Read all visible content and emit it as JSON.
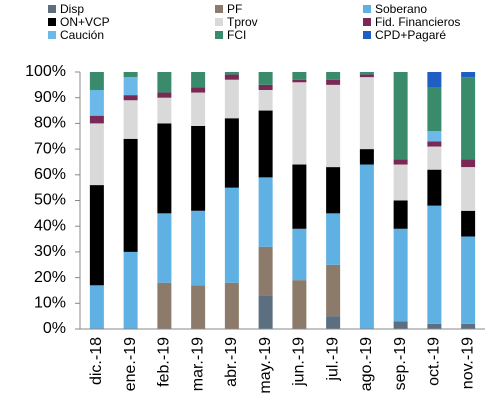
{
  "chart_data": {
    "type": "stacked-bar",
    "categories": [
      "dic.-18",
      "ene.-19",
      "feb.-19",
      "mar.-19",
      "abr.-19",
      "may.-19",
      "jun.-19",
      "jul.-19",
      "ago.-19",
      "sep.-19",
      "oct.-19",
      "nov.-19"
    ],
    "series": [
      {
        "name": "Disp",
        "color": "#5b6f80",
        "values": [
          0,
          0,
          0,
          0,
          0,
          13,
          0,
          5,
          0,
          3,
          2,
          2
        ]
      },
      {
        "name": "PF",
        "color": "#8c7b6b",
        "values": [
          0,
          0,
          18,
          17,
          18,
          19,
          19,
          20,
          0,
          0,
          0,
          0
        ]
      },
      {
        "name": "Soberano",
        "color": "#5fb0e3",
        "values": [
          17,
          30,
          27,
          29,
          37,
          27,
          20,
          20,
          64,
          36,
          46,
          34
        ]
      },
      {
        "name": "ON+VCP",
        "color": "#000000",
        "values": [
          39,
          44,
          35,
          33,
          27,
          26,
          25,
          18,
          6,
          11,
          14,
          10
        ]
      },
      {
        "name": "Tprov",
        "color": "#d9d9d9",
        "values": [
          24,
          15,
          10,
          13,
          15,
          8,
          32,
          32,
          28,
          14,
          9,
          17
        ]
      },
      {
        "name": "Fid. Financieros",
        "color": "#7a2855",
        "values": [
          3,
          2,
          2,
          2,
          2,
          2,
          1,
          2,
          1,
          2,
          2,
          3
        ]
      },
      {
        "name": "Caución",
        "color": "#6cb8e8",
        "values": [
          10,
          7,
          0,
          0,
          0,
          0,
          0,
          0,
          0,
          0,
          4,
          0
        ]
      },
      {
        "name": "FCI",
        "color": "#3a8a6c",
        "values": [
          7,
          2,
          8,
          6,
          1,
          5,
          3,
          3,
          1,
          34,
          17,
          32
        ]
      },
      {
        "name": "CPD+Pagaré",
        "color": "#1f5fc4",
        "values": [
          0,
          0,
          0,
          0,
          0,
          0,
          0,
          0,
          0,
          0,
          6,
          2
        ]
      }
    ],
    "ylim": [
      0,
      100
    ],
    "yticks": [
      {
        "value": 0,
        "label": "0%"
      },
      {
        "value": 10,
        "label": "10%"
      },
      {
        "value": 20,
        "label": "20%"
      },
      {
        "value": 30,
        "label": "30%"
      },
      {
        "value": 40,
        "label": "40%"
      },
      {
        "value": 50,
        "label": "50%"
      },
      {
        "value": 60,
        "label": "60%"
      },
      {
        "value": 70,
        "label": "70%"
      },
      {
        "value": 80,
        "label": "80%"
      },
      {
        "value": 90,
        "label": "90%"
      },
      {
        "value": 100,
        "label": "100%"
      }
    ],
    "grid": false
  }
}
